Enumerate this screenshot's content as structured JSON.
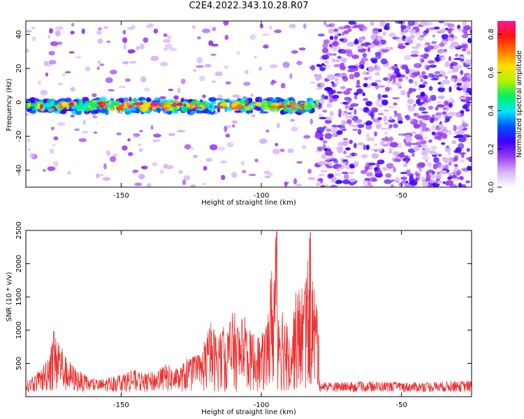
{
  "title": "C2E4.2022.343.10.28.R07",
  "colors": {
    "snr_line": "#e83232",
    "axes": "#000000",
    "background": "#ffffff"
  },
  "chart_data": [
    {
      "type": "heatmap",
      "name": "spectrogram",
      "title": "",
      "xlabel": "Height of straight line (km)",
      "ylabel": "Frequency (Hz)",
      "xlim": [
        -184,
        -25
      ],
      "ylim": [
        -50,
        48
      ],
      "xticks": [
        -150,
        -100,
        -50
      ],
      "yticks": [
        -40,
        -20,
        0,
        20,
        40
      ],
      "signal_band": {
        "x_range": [
          -184,
          -80
        ],
        "frequency_center": -2,
        "frequency_halfwidth": 4
      },
      "noise_regions": [
        {
          "x_range": [
            -80,
            -25
          ],
          "density": "high"
        },
        {
          "x_range": [
            -184,
            -80
          ],
          "density": "low"
        }
      ],
      "colorbar": {
        "label": "Normalized spectral amplitude",
        "range": [
          0,
          0.87
        ],
        "ticks": [
          0.0,
          0.2,
          0.4,
          0.6,
          0.8
        ],
        "colormap": [
          "#ffffff",
          "#d8b4f6",
          "#9a3cf0",
          "#3a00ff",
          "#0050ff",
          "#00e5ff",
          "#00f060",
          "#b4f000",
          "#ffe000",
          "#ff7800",
          "#ff1414",
          "#ff1490"
        ]
      }
    },
    {
      "type": "line",
      "name": "snr",
      "title": "",
      "xlabel": "Height of straight line (km)",
      "ylabel": "SNR (10 * v/v)",
      "xlim": [
        -184,
        -25
      ],
      "ylim": [
        0,
        2500
      ],
      "xticks": [
        -150,
        -100,
        -50
      ],
      "yticks": [
        500,
        1000,
        1500,
        2000,
        2500
      ],
      "envelope": {
        "x": [
          -184,
          -178,
          -175,
          -172,
          -170,
          -166,
          -162,
          -158,
          -155,
          -150,
          -146,
          -142,
          -138,
          -134,
          -130,
          -126,
          -122,
          -120,
          -118,
          -116,
          -114,
          -112,
          -110,
          -108,
          -106,
          -104,
          -102,
          -100,
          -98,
          -96,
          -95,
          -94,
          -92,
          -90,
          -88,
          -86,
          -84,
          -83,
          -82,
          -81,
          -80,
          -79,
          -78,
          -70,
          -60,
          -50,
          -40,
          -30,
          -25
        ],
        "y": [
          220,
          450,
          880,
          950,
          620,
          430,
          300,
          260,
          290,
          360,
          420,
          350,
          390,
          500,
          420,
          600,
          640,
          880,
          1150,
          980,
          1050,
          1100,
          1300,
          1150,
          1250,
          1000,
          1000,
          900,
          1200,
          2200,
          2450,
          1900,
          1350,
          1000,
          1550,
          1700,
          1900,
          2450,
          2100,
          1700,
          1600,
          250,
          220,
          220,
          230,
          220,
          220,
          240,
          240
        ],
        "baseline": 70
      },
      "peaks": [
        {
          "x": -94.5,
          "y": 2480
        },
        {
          "x": -82.5,
          "y": 2470
        },
        {
          "x": -174,
          "y": 980
        }
      ]
    }
  ]
}
